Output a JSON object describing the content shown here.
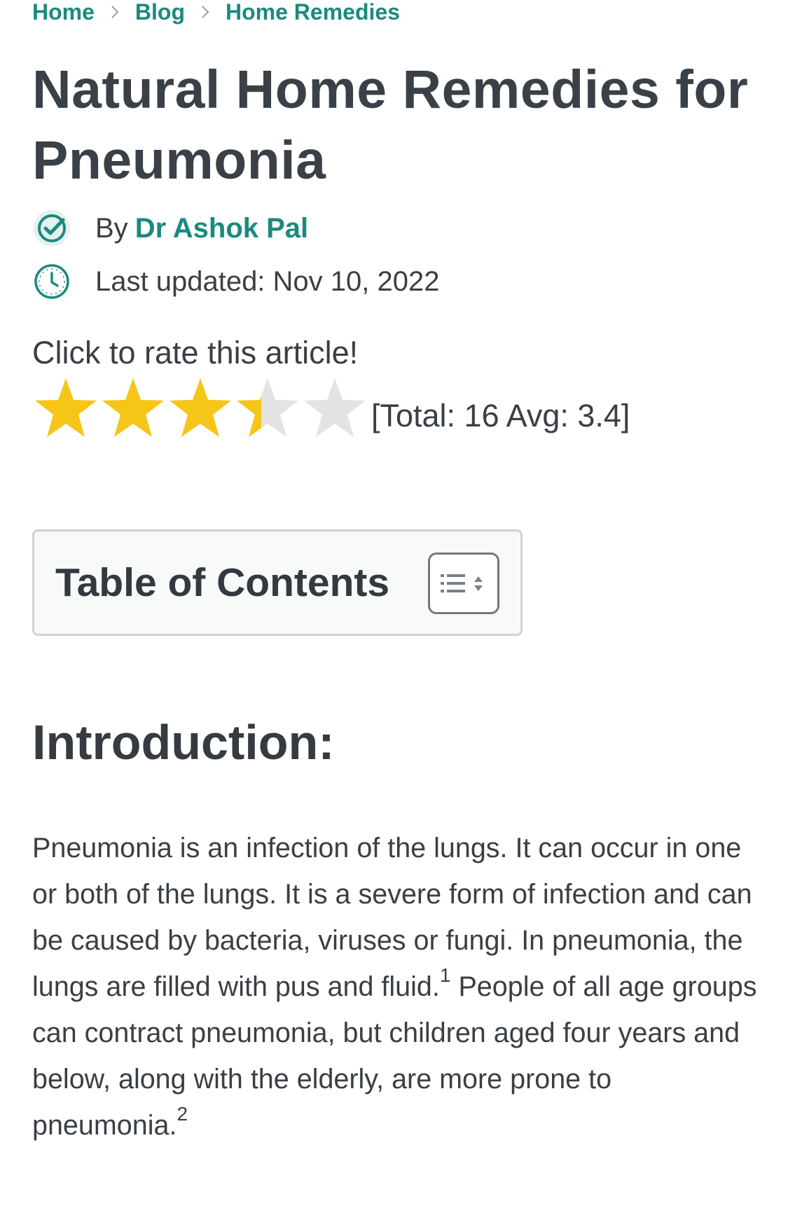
{
  "breadcrumb": {
    "items": [
      {
        "label": "Home"
      },
      {
        "label": "Blog"
      },
      {
        "label": "Home Remedies"
      }
    ]
  },
  "article": {
    "title": "Natural Home Remedies for Pneumonia",
    "author_prefix": "By",
    "author_name": "Dr Ashok Pal",
    "updated_text": "Last updated: Nov 10, 2022"
  },
  "rating": {
    "prompt": "Click to rate this article!",
    "stars_total": 5,
    "avg": 3.4,
    "summary": "[Total: 16 Avg: 3.4]"
  },
  "toc": {
    "title": "Table of Contents"
  },
  "intro": {
    "heading": "Introduction:",
    "p1": "Pneumonia is an infection of the lungs. It can occur in one or both of the lungs. It is a severe form of infection and can be caused by bacteria, viruses or fungi. In pneumonia, the lungs are filled with pus and fluid.",
    "ref1": "1",
    "p2": "People of all age groups can contract pneumonia, but children aged four years and below, along with the elderly, are more prone to pneumonia.",
    "ref2": "2"
  },
  "icons": {
    "author": "verified-check-icon",
    "updated": "clock-icon",
    "toc_toggle": "list-toggle-icon",
    "separator": "chevron-right-icon"
  },
  "colors": {
    "accent": "#1b8a7e",
    "star_filled": "#f5c518",
    "star_empty": "#e3e3e3",
    "text": "#3a3f44"
  }
}
